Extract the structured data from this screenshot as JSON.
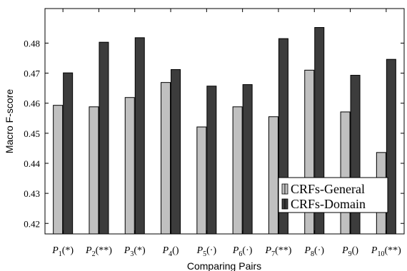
{
  "chart_data": {
    "type": "bar",
    "title": "",
    "xlabel": "Comparing Pairs",
    "ylabel": "Macro F-score",
    "ylim": [
      0.4165,
      0.4915
    ],
    "yticks": [
      "0.42",
      "0.43",
      "0.44",
      "0.45",
      "0.46",
      "0.47",
      "0.48"
    ],
    "ytick_values": [
      0.42,
      0.43,
      0.44,
      0.45,
      0.46,
      0.47,
      0.48
    ],
    "categories": [
      {
        "base": "P",
        "sub": "1",
        "suffix": "(*)"
      },
      {
        "base": "P",
        "sub": "2",
        "suffix": "(**)"
      },
      {
        "base": "P",
        "sub": "3",
        "suffix": "(*)"
      },
      {
        "base": "P",
        "sub": "4",
        "suffix": "()"
      },
      {
        "base": "P",
        "sub": "5",
        "suffix": "(·)"
      },
      {
        "base": "P",
        "sub": "6",
        "suffix": "(·)"
      },
      {
        "base": "P",
        "sub": "7",
        "suffix": "(**)"
      },
      {
        "base": "P",
        "sub": "8",
        "suffix": "(·)"
      },
      {
        "base": "P",
        "sub": "9",
        "suffix": "()"
      },
      {
        "base": "P",
        "sub": "10",
        "suffix": "(**)"
      }
    ],
    "series": [
      {
        "name": "CRFs-General",
        "color": "#c0c0c0",
        "values": [
          0.4593,
          0.4588,
          0.4619,
          0.4669,
          0.4521,
          0.4588,
          0.4555,
          0.471,
          0.4571,
          0.4436
        ]
      },
      {
        "name": "CRFs-Domain",
        "color": "#3c3c3c",
        "values": [
          0.4701,
          0.4803,
          0.4818,
          0.4712,
          0.4657,
          0.4662,
          0.4815,
          0.4852,
          0.4693,
          0.4746
        ]
      }
    ],
    "grid": false,
    "legend": "lower-right"
  }
}
